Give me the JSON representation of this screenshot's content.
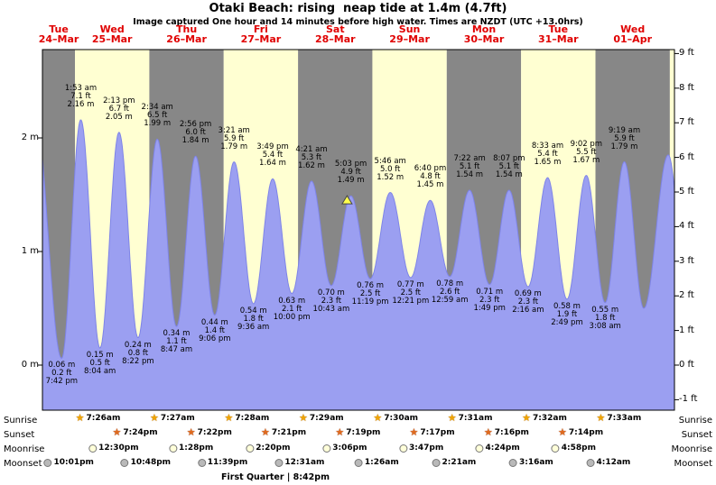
{
  "title": "Otaki Beach: rising  neap tide at 1.4m (4.7ft)",
  "subtitle": "Image captured One hour and 14 minutes before high water. Times are NZDT (UTC +13.0hrs)",
  "side_labels": {
    "sunrise": "Sunrise",
    "sunset": "Sunset",
    "moonrise": "Moonrise",
    "moonset": "Moonset"
  },
  "footer": "First Quarter | 8:42pm",
  "colors": {
    "day_label": "#e00000",
    "band_gray": "#878787",
    "band_yellow": "#ffffd2",
    "tide_fill": "#9b9ff1",
    "tide_edge": "#7e84e8",
    "marker_fill": "#ffff4d",
    "marker_edge": "#444444",
    "sunrise_star": "#f0a500",
    "sunset_star": "#e06a1e",
    "moonrise_fill": "#ffffd9",
    "moonset_fill": "#b9b9b9"
  },
  "chart_data": {
    "type": "area",
    "title": "Otaki Beach: rising neap tide at 1.4m (4.7ft)",
    "x_axis": "time (Tue 24-Mar to Wed 01-Apr, NZDT)",
    "y_axis_left": "metres",
    "y_axis_right": "feet",
    "x_start_hours": 13.5,
    "x_end_hours": 217.5,
    "ylim_m": [
      -0.45,
      2.78
    ],
    "yticks_m": [
      {
        "v": 0,
        "label": "0 m"
      },
      {
        "v": 1,
        "label": "1 m"
      },
      {
        "v": 2,
        "label": "2 m"
      }
    ],
    "yticks_ft": [
      {
        "v": 9,
        "label": "9 ft"
      },
      {
        "v": 8,
        "label": "8 ft"
      },
      {
        "v": 7,
        "label": "7 ft"
      },
      {
        "v": 6,
        "label": "6 ft"
      },
      {
        "v": 5,
        "label": "5 ft"
      },
      {
        "v": 4,
        "label": "4 ft"
      },
      {
        "v": 3,
        "label": "3 ft"
      },
      {
        "v": 2,
        "label": "2 ft"
      },
      {
        "v": 1,
        "label": "1 ft"
      },
      {
        "v": 0,
        "label": "0 ft"
      },
      {
        "v": -1,
        "label": "-1 ft"
      }
    ],
    "days": [
      {
        "name": "Tue",
        "date": "24–Mar"
      },
      {
        "name": "Wed",
        "date": "25–Mar"
      },
      {
        "name": "Thu",
        "date": "26–Mar"
      },
      {
        "name": "Fri",
        "date": "27–Mar"
      },
      {
        "name": "Sat",
        "date": "28–Mar"
      },
      {
        "name": "Sun",
        "date": "29–Mar"
      },
      {
        "name": "Mon",
        "date": "30–Mar"
      },
      {
        "name": "Tue",
        "date": "31–Mar"
      },
      {
        "name": "Wed",
        "date": "01–Apr"
      }
    ],
    "tides": [
      {
        "type": "low",
        "t": 19.7,
        "m": 0.06,
        "lines": [
          "0.06 m",
          "0.2 ft",
          "7:42 pm"
        ]
      },
      {
        "type": "high",
        "t": 25.88,
        "m": 2.16,
        "lines": [
          "1:53 am",
          "7.1 ft",
          "2.16 m"
        ]
      },
      {
        "type": "low",
        "t": 32.07,
        "m": 0.15,
        "lines": [
          "0.15 m",
          "0.5 ft",
          "8:04 am"
        ]
      },
      {
        "type": "high",
        "t": 38.22,
        "m": 2.05,
        "lines": [
          "2:13 pm",
          "6.7 ft",
          "2.05 m"
        ]
      },
      {
        "type": "low",
        "t": 44.37,
        "m": 0.24,
        "lines": [
          "0.24 m",
          "0.8 ft",
          "8:22 pm"
        ]
      },
      {
        "type": "high",
        "t": 50.57,
        "m": 1.99,
        "lines": [
          "2:34 am",
          "6.5 ft",
          "1.99 m"
        ]
      },
      {
        "type": "low",
        "t": 56.78,
        "m": 0.34,
        "lines": [
          "0.34 m",
          "1.1 ft",
          "8:47 am"
        ]
      },
      {
        "type": "high",
        "t": 62.93,
        "m": 1.84,
        "lines": [
          "2:56 pm",
          "6.0 ft",
          "1.84 m"
        ]
      },
      {
        "type": "low",
        "t": 69.1,
        "m": 0.44,
        "lines": [
          "0.44 m",
          "1.4 ft",
          "9:06 pm"
        ]
      },
      {
        "type": "high",
        "t": 75.35,
        "m": 1.79,
        "lines": [
          "3:21 am",
          "5.9 ft",
          "1.79 m"
        ]
      },
      {
        "type": "low",
        "t": 81.6,
        "m": 0.54,
        "lines": [
          "0.54 m",
          "1.8 ft",
          "9:36 am"
        ]
      },
      {
        "type": "high",
        "t": 87.82,
        "m": 1.64,
        "lines": [
          "3:49 pm",
          "5.4 ft",
          "1.64 m"
        ]
      },
      {
        "type": "low",
        "t": 94,
        "m": 0.63,
        "lines": [
          "0.63 m",
          "2.1 ft",
          "10:00 pm"
        ]
      },
      {
        "type": "high",
        "t": 100.35,
        "m": 1.62,
        "lines": [
          "4:21 am",
          "5.3 ft",
          "1.62 m"
        ]
      },
      {
        "type": "low",
        "t": 106.72,
        "m": 0.7,
        "lines": [
          "0.70 m",
          "2.3 ft",
          "10:43 am"
        ]
      },
      {
        "type": "high",
        "t": 113.05,
        "m": 1.49,
        "lines": [
          "5:03 pm",
          "4.9 ft",
          "1.49 m"
        ]
      },
      {
        "type": "low",
        "t": 119.32,
        "m": 0.76,
        "lines": [
          "0.76 m",
          "2.5 ft",
          "11:19 pm"
        ]
      },
      {
        "type": "high",
        "t": 125.77,
        "m": 1.52,
        "lines": [
          "5:46 am",
          "5.0 ft",
          "1.52 m"
        ]
      },
      {
        "type": "low",
        "t": 132.35,
        "m": 0.77,
        "lines": [
          "0.77 m",
          "2.5 ft",
          "12:21 pm"
        ]
      },
      {
        "type": "high",
        "t": 138.67,
        "m": 1.45,
        "lines": [
          "6:40 pm",
          "4.8 ft",
          "1.45 m"
        ]
      },
      {
        "type": "low",
        "t": 144.98,
        "m": 0.78,
        "lines": [
          "0.78 m",
          "2.6 ft",
          "12:59 am"
        ]
      },
      {
        "type": "high",
        "t": 151.37,
        "m": 1.54,
        "lines": [
          "7:22 am",
          "5.1 ft",
          "1.54 m"
        ]
      },
      {
        "type": "low",
        "t": 157.82,
        "m": 0.71,
        "lines": [
          "0.71 m",
          "2.3 ft",
          "1:49 pm"
        ]
      },
      {
        "type": "high",
        "t": 164.12,
        "m": 1.54,
        "lines": [
          "8:07 pm",
          "5.1 ft",
          "1.54 m"
        ]
      },
      {
        "type": "low",
        "t": 170.27,
        "m": 0.69,
        "lines": [
          "0.69 m",
          "2.3 ft",
          "2:16 am"
        ]
      },
      {
        "type": "high",
        "t": 176.55,
        "m": 1.65,
        "lines": [
          "8:33 am",
          "5.4 ft",
          "1.65 m"
        ]
      },
      {
        "type": "low",
        "t": 182.82,
        "m": 0.58,
        "lines": [
          "0.58 m",
          "1.9 ft",
          "2:49 pm"
        ]
      },
      {
        "type": "high",
        "t": 189.03,
        "m": 1.67,
        "lines": [
          "9:02 pm",
          "5.5 ft",
          "1.67 m"
        ]
      },
      {
        "type": "low",
        "t": 195.13,
        "m": 0.55,
        "lines": [
          "0.55 m",
          "1.8 ft",
          "3:08 am"
        ]
      },
      {
        "type": "high",
        "t": 201.32,
        "m": 1.79,
        "lines": [
          "9:19 am",
          "5.9 ft",
          "1.79 m"
        ]
      }
    ],
    "marker": {
      "t": 111.82,
      "m": 1.42
    },
    "curve_padding": {
      "start": {
        "t": 11.1,
        "m": 2.2
      },
      "end": [
        {
          "t": 207.6,
          "m": 0.5
        },
        {
          "t": 215.5,
          "m": 1.85
        },
        {
          "t": 221.8,
          "m": 0.5
        }
      ]
    },
    "sun_moon": {
      "sunrise": [
        {
          "t": 31.43,
          "time": "7:26am"
        },
        {
          "t": 55.45,
          "time": "7:27am"
        },
        {
          "t": 79.47,
          "time": "7:28am"
        },
        {
          "t": 103.48,
          "time": "7:29am"
        },
        {
          "t": 127.5,
          "time": "7:30am"
        },
        {
          "t": 151.52,
          "time": "7:31am"
        },
        {
          "t": 175.53,
          "time": "7:32am"
        },
        {
          "t": 199.55,
          "time": "7:33am"
        }
      ],
      "sunset": [
        {
          "t": 43.4,
          "time": "7:24pm"
        },
        {
          "t": 67.37,
          "time": "7:22pm"
        },
        {
          "t": 91.35,
          "time": "7:21pm"
        },
        {
          "t": 115.32,
          "time": "7:19pm"
        },
        {
          "t": 139.28,
          "time": "7:17pm"
        },
        {
          "t": 163.27,
          "time": "7:16pm"
        },
        {
          "t": 187.23,
          "time": "7:14pm"
        }
      ],
      "moonrise": [
        {
          "t": 36.5,
          "time": "12:30pm"
        },
        {
          "t": 61.47,
          "time": "1:28pm"
        },
        {
          "t": 86.33,
          "time": "2:20pm"
        },
        {
          "t": 111.1,
          "time": "3:06pm"
        },
        {
          "t": 135.78,
          "time": "3:47pm"
        },
        {
          "t": 160.4,
          "time": "4:24pm"
        },
        {
          "t": 184.97,
          "time": "4:58pm"
        }
      ],
      "moonset": [
        {
          "t": 22.02,
          "time": "10:01pm"
        },
        {
          "t": 46.8,
          "time": "10:48pm"
        },
        {
          "t": 71.65,
          "time": "11:39pm"
        },
        {
          "t": 96.52,
          "time": "12:31am"
        },
        {
          "t": 121.43,
          "time": "1:26am"
        },
        {
          "t": 146.35,
          "time": "2:21am"
        },
        {
          "t": 171.27,
          "time": "3:16am"
        },
        {
          "t": 196.2,
          "time": "4:12am"
        }
      ]
    }
  }
}
